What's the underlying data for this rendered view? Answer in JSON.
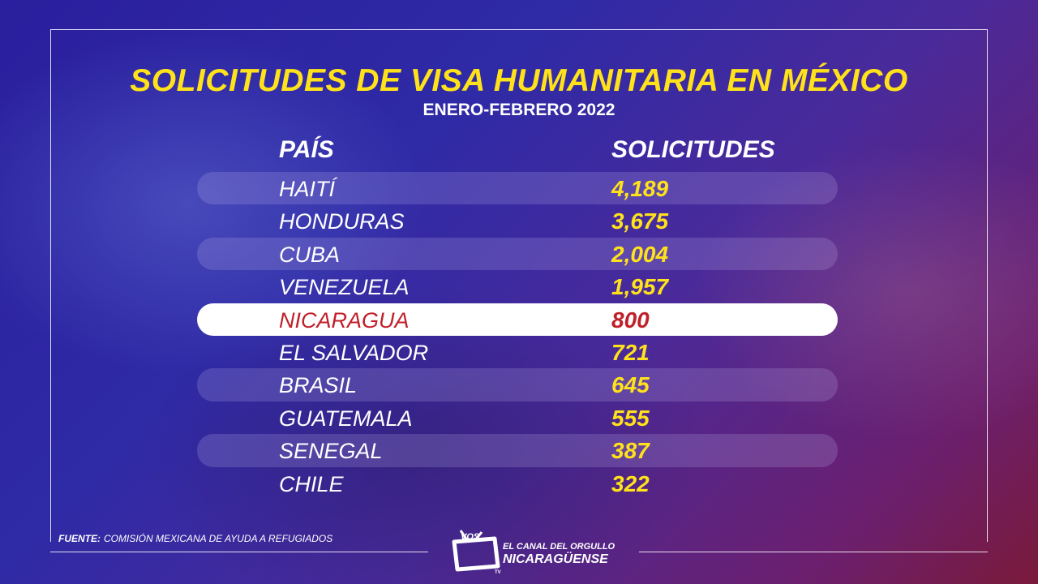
{
  "title": "SOLICITUDES DE VISA HUMANITARIA EN MÉXICO",
  "subtitle": "ENERO-FEBRERO 2022",
  "columns": {
    "country": "PAÍS",
    "requests": "SOLICITUDES"
  },
  "rows": [
    {
      "country": "HAITÍ",
      "count": "4,189"
    },
    {
      "country": "HONDURAS",
      "count": "3,675"
    },
    {
      "country": "CUBA",
      "count": "2,004"
    },
    {
      "country": "VENEZUELA",
      "count": "1,957"
    },
    {
      "country": "NICARAGUA",
      "count": "800"
    },
    {
      "country": "EL SALVADOR",
      "count": "721"
    },
    {
      "country": "BRASIL",
      "count": "645"
    },
    {
      "country": "GUATEMALA",
      "count": "555"
    },
    {
      "country": "SENEGAL",
      "count": "387"
    },
    {
      "country": "CHILE",
      "count": "322"
    }
  ],
  "source": {
    "label": "FUENTE:",
    "text": "COMISIÓN MEXICANA DE AYUDA A REFUGIADOS"
  },
  "logo": {
    "brand": "VOS",
    "suffix": "TV",
    "tagline_small": "EL CANAL DEL ORGULLO",
    "tagline_big": "NICARAGÜENSE"
  },
  "colors": {
    "title": "#ffe21a",
    "highlight_text": "#c0202a",
    "background": "#2f2aa6"
  },
  "chart_data": {
    "type": "table",
    "title": "SOLICITUDES DE VISA HUMANITARIA EN MÉXICO",
    "subtitle": "ENERO-FEBRERO 2022",
    "columns": [
      "PAÍS",
      "SOLICITUDES"
    ],
    "categories": [
      "HAITÍ",
      "HONDURAS",
      "CUBA",
      "VENEZUELA",
      "NICARAGUA",
      "EL SALVADOR",
      "BRASIL",
      "GUATEMALA",
      "SENEGAL",
      "CHILE"
    ],
    "values": [
      4189,
      3675,
      2004,
      1957,
      800,
      721,
      645,
      555,
      387,
      322
    ],
    "highlighted": "NICARAGUA"
  }
}
